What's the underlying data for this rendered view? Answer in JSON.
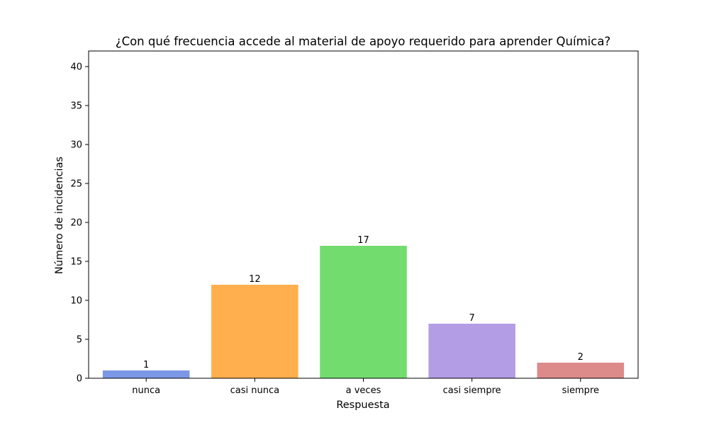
{
  "chart_data": {
    "type": "bar",
    "title": "¿Con qué frecuencia accede al material de apoyo requerido para aprender Química?",
    "xlabel": "Respuesta",
    "ylabel": "Número de incidencias",
    "categories": [
      "nunca",
      "casi nunca",
      "a veces",
      "casi siempre",
      "siempre"
    ],
    "values": [
      1,
      12,
      17,
      7,
      2
    ],
    "data_labels": [
      "1",
      "12",
      "17",
      "7",
      "2"
    ],
    "colors": [
      "#7b97e6",
      "#ffaf4d",
      "#72dc6e",
      "#b39de4",
      "#dc8a8a"
    ],
    "ylim": [
      0,
      42
    ],
    "yticks": [
      0,
      5,
      10,
      15,
      20,
      25,
      30,
      35,
      40
    ],
    "ytick_labels": [
      "0",
      "5",
      "10",
      "15",
      "20",
      "25",
      "30",
      "35",
      "40"
    ],
    "grid": false,
    "legend": "none"
  }
}
